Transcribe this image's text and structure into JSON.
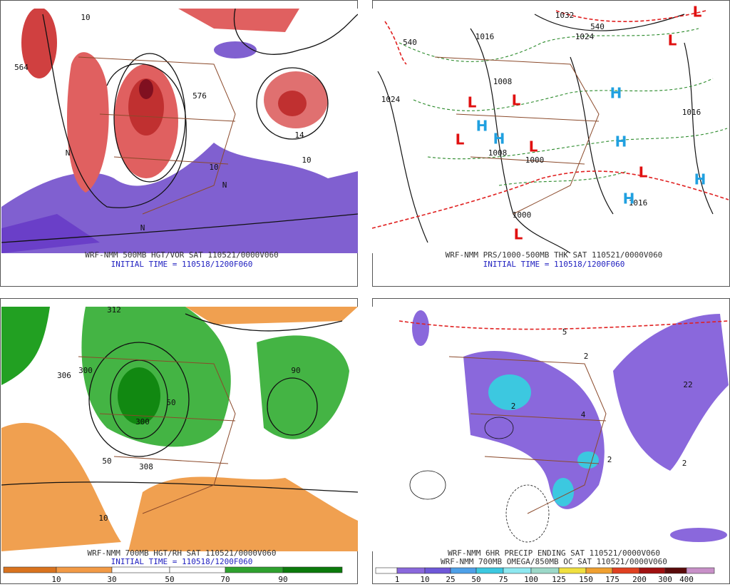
{
  "panels": [
    {
      "caption": [
        "WRF-NMM 500MB HGT/VOR SAT 110521/0000V060",
        "INITIAL TIME = 110518/1200F060"
      ],
      "map_labels": [
        "564",
        "576",
        "10",
        "10",
        "10",
        "14",
        "N",
        "N",
        "N"
      ]
    },
    {
      "caption": [
        "WRF-NMM PRS/1000-500MB THK SAT 110521/0000V060",
        "INITIAL TIME = 110518/1200F060"
      ],
      "pressure_centers": [
        "L",
        "L",
        "L",
        "L",
        "L",
        "L",
        "L",
        "L",
        "H",
        "H",
        "H",
        "H",
        "H",
        "H"
      ],
      "map_labels": [
        "1032",
        "1024",
        "1016",
        "1024",
        "1008",
        "1008",
        "1000",
        "1016",
        "1016",
        "1000",
        "540",
        "540"
      ]
    },
    {
      "caption": [
        "WRF-NMM 700MB HGT/RH SAT 110521/0000V060",
        "INITIAL TIME = 110518/1200F060"
      ],
      "map_labels": [
        "312",
        "300",
        "308",
        "300",
        "306",
        "50",
        "90",
        "10",
        "50"
      ],
      "colorbar": [
        "10",
        "30",
        "50",
        "70",
        "90"
      ]
    },
    {
      "caption": [
        "WRF-NMM 6HR PRECIP ENDING SAT 110521/0000V060",
        "WRF-NMM 700MB OMEGA/850MB OC SAT 110521/0000V060"
      ],
      "map_labels": [
        "5",
        "2",
        "2",
        "4",
        "2",
        "22",
        "2"
      ],
      "colorbar": [
        "1",
        "10",
        "25",
        "50",
        "75",
        "100",
        "125",
        "150",
        "175",
        "200",
        "300",
        "400"
      ]
    }
  ]
}
